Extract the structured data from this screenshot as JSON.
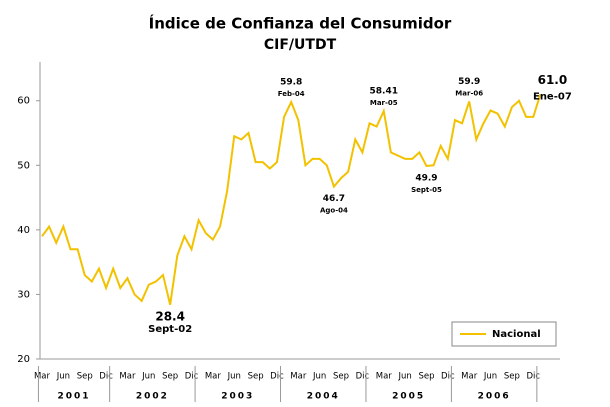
{
  "chart_data": {
    "type": "line",
    "title": "Índice de Confianza del Consumidor",
    "subtitle": "CIF/UTDT",
    "categories": [
      "Mar",
      null,
      null,
      "Jun",
      null,
      null,
      "Sep",
      null,
      null,
      "Dic",
      null,
      null,
      "Mar",
      null,
      null,
      "Jun",
      null,
      null,
      "Sep",
      null,
      null,
      "Dic",
      null,
      null,
      "Mar",
      null,
      null,
      "Jun",
      null,
      null,
      "Sep",
      null,
      null,
      "Dic",
      null,
      null,
      "Mar",
      null,
      null,
      "Jun",
      null,
      null,
      "Sep",
      null,
      null,
      "Dic",
      null,
      null,
      "Mar",
      null,
      null,
      "Jun",
      null,
      null,
      "Sep",
      null,
      null,
      "Dic",
      null,
      null,
      "Mar",
      null,
      null,
      "Jun",
      null,
      null,
      "Sep",
      null,
      null,
      "Dic",
      null
    ],
    "years": [
      "2001",
      "2002",
      "2003",
      "2004",
      "2005",
      "2006"
    ],
    "series": [
      {
        "name": "Nacional",
        "color": "#f2c200",
        "values": [
          39,
          40.5,
          38,
          40.5,
          37,
          37,
          33,
          32,
          34,
          31,
          34,
          31,
          32.5,
          30,
          29,
          31.5,
          32,
          33,
          28.4,
          36,
          39,
          37,
          41.5,
          39.5,
          38.5,
          40.5,
          46,
          54.5,
          54,
          55,
          50.5,
          50.5,
          49.5,
          50.5,
          57.5,
          59.8,
          57,
          50,
          51,
          51,
          50,
          46.7,
          48,
          49,
          54,
          52,
          56.5,
          56,
          58.41,
          52,
          51.5,
          51,
          51,
          52,
          49.9,
          50,
          53,
          51,
          57,
          56.5,
          59.9,
          54,
          56.5,
          58.5,
          58,
          56,
          59,
          60,
          57.5,
          57.5,
          61
        ],
        "value_labels": [
          null,
          null,
          null,
          null,
          null,
          null,
          null,
          null,
          null,
          null,
          null,
          null,
          null,
          null,
          null,
          null,
          null,
          null,
          "28.4",
          null,
          null,
          null,
          null,
          null,
          null,
          null,
          null,
          null,
          null,
          null,
          null,
          null,
          null,
          null,
          null,
          "59.8",
          null,
          null,
          null,
          null,
          null,
          "46.7",
          null,
          null,
          null,
          null,
          null,
          null,
          "58.41",
          null,
          null,
          null,
          null,
          null,
          "49.9",
          null,
          null,
          null,
          null,
          null,
          "59.9",
          null,
          null,
          null,
          null,
          null,
          null,
          null,
          null,
          null,
          "61.0"
        ],
        "point_labels": [
          null,
          null,
          null,
          null,
          null,
          null,
          null,
          null,
          null,
          null,
          null,
          null,
          null,
          null,
          null,
          null,
          null,
          null,
          "Sept-02",
          null,
          null,
          null,
          null,
          null,
          null,
          null,
          null,
          null,
          null,
          null,
          null,
          null,
          null,
          null,
          null,
          "Feb-04",
          null,
          null,
          null,
          null,
          null,
          "Ago-04",
          null,
          null,
          null,
          null,
          null,
          null,
          "Mar-05",
          null,
          null,
          null,
          null,
          null,
          "Sept-05",
          null,
          null,
          null,
          null,
          null,
          "Mar-06",
          null,
          null,
          null,
          null,
          null,
          null,
          null,
          null,
          null,
          "Ene-07"
        ]
      }
    ],
    "ylim": [
      20,
      66
    ],
    "yticks": [
      20,
      30,
      40,
      50,
      60
    ],
    "grid": false,
    "legend": "lower right"
  }
}
